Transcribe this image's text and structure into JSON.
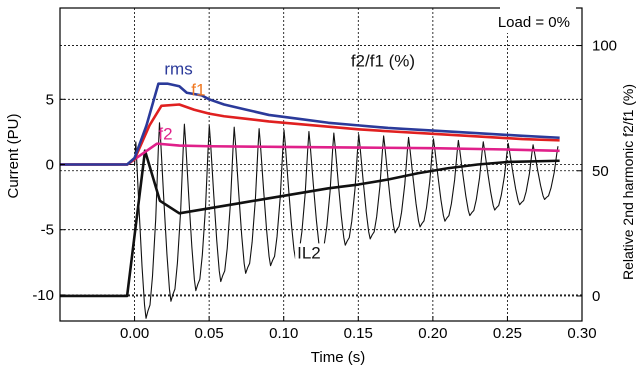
{
  "chart_data": {
    "type": "line",
    "xlabel": "Time (s)",
    "ylabel": "Current (PU)",
    "y2label": "Relative 2nd harmonic f2/f1 (%)",
    "xlim": [
      -0.05,
      0.3
    ],
    "ylim": [
      -12,
      12
    ],
    "y2lim": [
      -10,
      115
    ],
    "xticks": [
      0.0,
      0.05,
      0.1,
      0.15,
      0.2,
      0.25,
      0.3
    ],
    "xtick_labels": [
      "0.00",
      "0.05",
      "0.10",
      "0.15",
      "0.20",
      "0.25",
      "0.30"
    ],
    "yticks": [
      -10,
      -5,
      0,
      5
    ],
    "ytick_labels": [
      "-10",
      "-5",
      "0",
      "5"
    ],
    "y2ticks": [
      0,
      50,
      100
    ],
    "y2tick_labels": [
      "0",
      "50",
      "100"
    ],
    "grid": true,
    "annotation": "Load = 0%",
    "series": [
      {
        "name": "rms",
        "color": "#2b3a9a",
        "axis": "left",
        "label_at": [
          0.02,
          6.9
        ],
        "points": [
          [
            -0.05,
            0
          ],
          [
            -0.005,
            0
          ],
          [
            0.0,
            0.5
          ],
          [
            0.008,
            3.0
          ],
          [
            0.016,
            6.2
          ],
          [
            0.022,
            6.2
          ],
          [
            0.03,
            6.0
          ],
          [
            0.035,
            5.5
          ],
          [
            0.045,
            5.3
          ],
          [
            0.05,
            5.0
          ],
          [
            0.06,
            4.6
          ],
          [
            0.075,
            4.2
          ],
          [
            0.09,
            3.8
          ],
          [
            0.11,
            3.5
          ],
          [
            0.13,
            3.2
          ],
          [
            0.15,
            3.0
          ],
          [
            0.17,
            2.8
          ],
          [
            0.2,
            2.6
          ],
          [
            0.23,
            2.4
          ],
          [
            0.26,
            2.2
          ],
          [
            0.285,
            2.05
          ]
        ]
      },
      {
        "name": "f1",
        "color": "#e02020",
        "axis": "left",
        "label_color": "#f07820",
        "label_at": [
          0.038,
          5.3
        ],
        "points": [
          [
            -0.05,
            0
          ],
          [
            -0.005,
            0
          ],
          [
            0.0,
            0.4
          ],
          [
            0.01,
            3.0
          ],
          [
            0.018,
            4.5
          ],
          [
            0.03,
            4.6
          ],
          [
            0.04,
            4.2
          ],
          [
            0.05,
            3.9
          ],
          [
            0.06,
            3.7
          ],
          [
            0.075,
            3.5
          ],
          [
            0.09,
            3.3
          ],
          [
            0.11,
            3.1
          ],
          [
            0.13,
            2.9
          ],
          [
            0.15,
            2.7
          ],
          [
            0.17,
            2.55
          ],
          [
            0.2,
            2.35
          ],
          [
            0.23,
            2.15
          ],
          [
            0.26,
            1.95
          ],
          [
            0.285,
            1.85
          ]
        ]
      },
      {
        "name": "f2",
        "color": "#e0208a",
        "axis": "left",
        "label_at": [
          0.016,
          1.9
        ],
        "points": [
          [
            -0.05,
            0
          ],
          [
            -0.005,
            0
          ],
          [
            0.005,
            0.8
          ],
          [
            0.015,
            1.6
          ],
          [
            0.03,
            1.45
          ],
          [
            0.05,
            1.4
          ],
          [
            0.1,
            1.35
          ],
          [
            0.15,
            1.3
          ],
          [
            0.2,
            1.25
          ],
          [
            0.25,
            1.15
          ],
          [
            0.285,
            1.05
          ]
        ]
      },
      {
        "name": "f2/f1 (%)",
        "color": "#111111",
        "axis": "right",
        "label_at": [
          0.145,
          7.5
        ],
        "points": [
          [
            -0.05,
            0
          ],
          [
            -0.005,
            0
          ],
          [
            0.007,
            58
          ],
          [
            0.017,
            38
          ],
          [
            0.03,
            33
          ],
          [
            0.05,
            35
          ],
          [
            0.07,
            37
          ],
          [
            0.09,
            39
          ],
          [
            0.11,
            41
          ],
          [
            0.13,
            43
          ],
          [
            0.15,
            44.5
          ],
          [
            0.17,
            46.5
          ],
          [
            0.19,
            49
          ],
          [
            0.21,
            51
          ],
          [
            0.23,
            52.5
          ],
          [
            0.25,
            53.5
          ],
          [
            0.285,
            54
          ]
        ]
      },
      {
        "name": "IL2",
        "color": "#111111",
        "axis": "left",
        "thin": true,
        "label_at": [
          0.109,
          -7.2
        ],
        "waveform": {
          "start": 0.0,
          "end": 0.288,
          "period": 0.0167,
          "pre_level": 0,
          "peak_start": 3.2,
          "peak_end": 1.4,
          "trough_start": -11.5,
          "trough_end": -2.6
        }
      }
    ]
  }
}
